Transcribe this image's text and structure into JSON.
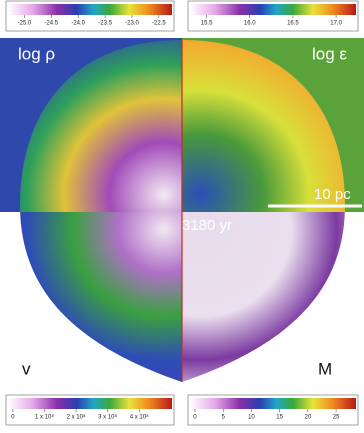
{
  "colorbars": [
    {
      "ticks": [
        "-25.0",
        "-24.5",
        "-24.0",
        "-23.5",
        "-23.0",
        "-22.5"
      ]
    },
    {
      "ticks": [
        "15.5",
        "16.0",
        "16.5",
        "17.0"
      ]
    },
    {
      "ticks": [
        "0",
        "1 x 10⁸",
        "2 x 10⁸",
        "3 x 10⁸",
        "4 x 10⁸"
      ]
    },
    {
      "ticks": [
        "0",
        "5",
        "10",
        "15",
        "20",
        "25"
      ]
    }
  ],
  "panels": [
    {
      "label": "log ρ"
    },
    {
      "label": "log ε"
    },
    {
      "label": "v"
    },
    {
      "label": "M"
    }
  ],
  "scale_bar": "10 pc",
  "time": "3180 yr"
}
